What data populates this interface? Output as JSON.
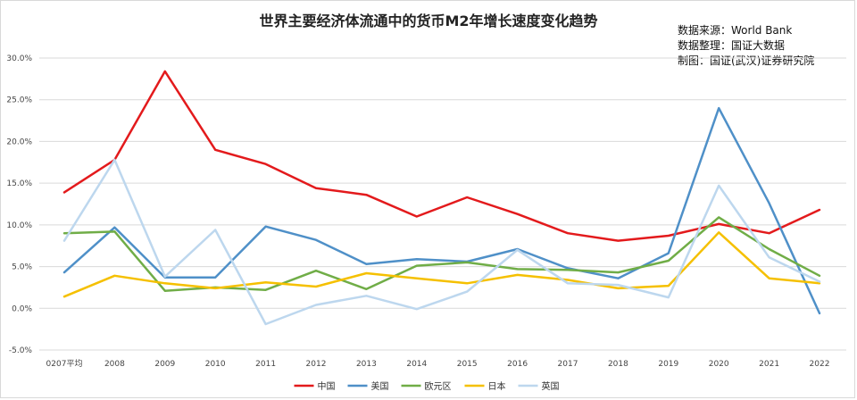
{
  "chart_data": {
    "type": "line",
    "title": "世界主要经济体流通中的货币M2年增长速度变化趋势",
    "source_lines": [
      "数据来源：World Bank",
      "数据整理：国证大数据",
      "制图：国证(武汉)证券研究院"
    ],
    "categories": [
      "0207平均",
      "2008",
      "2009",
      "2010",
      "2011",
      "2012",
      "2013",
      "2014",
      "2015",
      "2016",
      "2017",
      "2018",
      "2019",
      "2020",
      "2021",
      "2022"
    ],
    "y_ticks": [
      "-5.0%",
      "0.0%",
      "5.0%",
      "10.0%",
      "15.0%",
      "20.0%",
      "25.0%",
      "30.0%"
    ],
    "ylim": [
      -5,
      30
    ],
    "legend_position": "bottom",
    "series": [
      {
        "name": "中国",
        "color": "#e31a1c",
        "values": [
          13.9,
          17.8,
          28.4,
          19.0,
          17.3,
          14.4,
          13.6,
          11.0,
          13.3,
          11.3,
          9.0,
          8.1,
          8.7,
          10.1,
          9.0,
          11.8
        ]
      },
      {
        "name": "美国",
        "color": "#4f90c8",
        "values": [
          4.3,
          9.7,
          3.7,
          3.7,
          9.8,
          8.2,
          5.3,
          5.9,
          5.6,
          7.1,
          4.8,
          3.6,
          6.6,
          24.0,
          12.6,
          -0.6
        ]
      },
      {
        "name": "欧元区",
        "color": "#70ad47",
        "values": [
          9.0,
          9.2,
          2.1,
          2.5,
          2.2,
          4.5,
          2.3,
          5.1,
          5.5,
          4.7,
          4.6,
          4.3,
          5.7,
          10.9,
          7.1,
          3.9
        ]
      },
      {
        "name": "日本",
        "color": "#f5c000",
        "values": [
          1.4,
          3.9,
          3.0,
          2.4,
          3.1,
          2.6,
          4.2,
          3.6,
          3.0,
          4.0,
          3.4,
          2.4,
          2.7,
          9.1,
          3.6,
          3.0
        ]
      },
      {
        "name": "英国",
        "color": "#bdd7ee",
        "values": [
          8.1,
          17.8,
          3.8,
          9.4,
          -1.9,
          0.4,
          1.5,
          -0.1,
          2.0,
          7.0,
          3.0,
          2.8,
          1.3,
          14.7,
          6.1,
          3.2
        ]
      }
    ]
  }
}
